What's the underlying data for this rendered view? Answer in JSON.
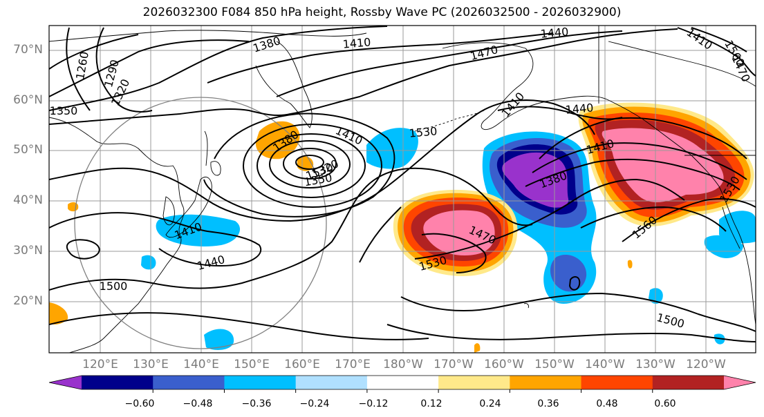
{
  "title": "2026032300 F084 850 hPa height, Rossby Wave PC (2026032500 - 2026032900)",
  "map": {
    "lat_labels": [
      "70°N",
      "60°N",
      "50°N",
      "40°N",
      "30°N",
      "20°N"
    ],
    "lon_labels": [
      "120°E",
      "130°E",
      "140°E",
      "150°E",
      "160°E",
      "170°E",
      "180°W",
      "170°W",
      "160°W",
      "150°W",
      "140°W",
      "130°W",
      "120°W"
    ],
    "contour_labels": [
      "1260",
      "1290",
      "1320",
      "1350",
      "1380",
      "1410",
      "1440",
      "1470",
      "1410",
      "1380",
      "1410",
      "1350",
      "1320",
      "1530",
      "1410",
      "1440",
      "1410",
      "1380",
      "1470",
      "1530",
      "1560",
      "1530",
      "1560",
      "1440",
      "1470",
      "1410",
      "1500",
      "1500",
      "1530"
    ]
  },
  "colorbar": {
    "tick_labels": [
      "−0.60",
      "−0.48",
      "−0.36",
      "−0.24",
      "−0.12",
      "0.12",
      "0.24",
      "0.36",
      "0.48",
      "0.60"
    ],
    "colors": [
      "#9932cc",
      "#00008b",
      "#3a5fcd",
      "#00bfff",
      "#b0e0ff",
      "#ffffff",
      "#ffe98a",
      "#ffa500",
      "#ff4500",
      "#b22222",
      "#ff82ab"
    ]
  },
  "colors": {
    "neg_strong": "#9932cc",
    "neg_dark": "#00008b",
    "neg_mid": "#3a5fcd",
    "neg_light": "#00bfff",
    "pos_light": "#ffe98a",
    "pos_orange": "#ffa500",
    "pos_red": "#ff4500",
    "pos_dark": "#b22222",
    "pos_pink": "#ff82ab"
  }
}
